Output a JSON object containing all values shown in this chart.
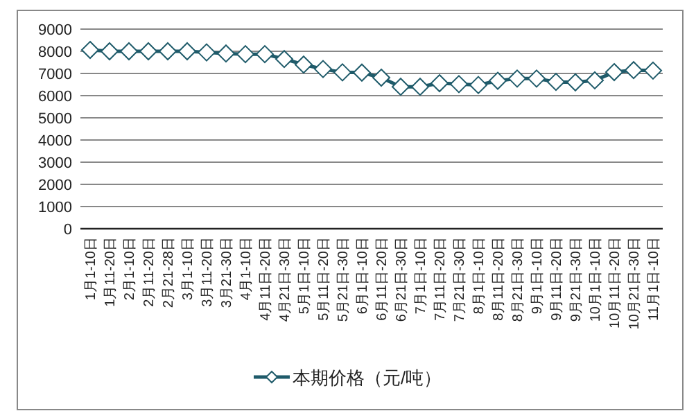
{
  "chart_data": {
    "type": "line",
    "categories": [
      "1月1-10日",
      "1月11-20日",
      "2月1-10日",
      "2月11-20日",
      "2月21-28日",
      "3月1-10日",
      "3月11-20日",
      "3月21-30日",
      "4月1-10日",
      "4月11日-20日",
      "4月21日-30日",
      "5月1日-10日",
      "5月11日-20日",
      "5月21日-30日",
      "6月1日-10日",
      "6月11日-20日",
      "6月21日-30日",
      "7月1日-10日",
      "7月11日-20日",
      "7月21日-30日",
      "8月1日-10日",
      "8月11日-20日",
      "8月21日-30日",
      "9月1日-10日",
      "9月11日-20日",
      "9月21日-30日",
      "10月1日-10日",
      "10月11日-20日",
      "10月21日-30日",
      "11月1日-10日"
    ],
    "series": [
      {
        "name": "本期价格（元/吨）",
        "color": "#1f5b6a",
        "values": [
          8060,
          8000,
          8000,
          8000,
          8000,
          8000,
          7950,
          7900,
          7870,
          7870,
          7650,
          7400,
          7200,
          7050,
          7040,
          6810,
          6400,
          6400,
          6560,
          6520,
          6480,
          6670,
          6770,
          6770,
          6620,
          6600,
          6690,
          7060,
          7150,
          7130
        ]
      }
    ],
    "ylim": [
      0,
      9000
    ],
    "yticks": [
      0,
      1000,
      2000,
      3000,
      4000,
      5000,
      6000,
      7000,
      8000,
      9000
    ],
    "grid": "y",
    "legend": "bottom",
    "marker": "diamond",
    "line_style": "solid"
  }
}
